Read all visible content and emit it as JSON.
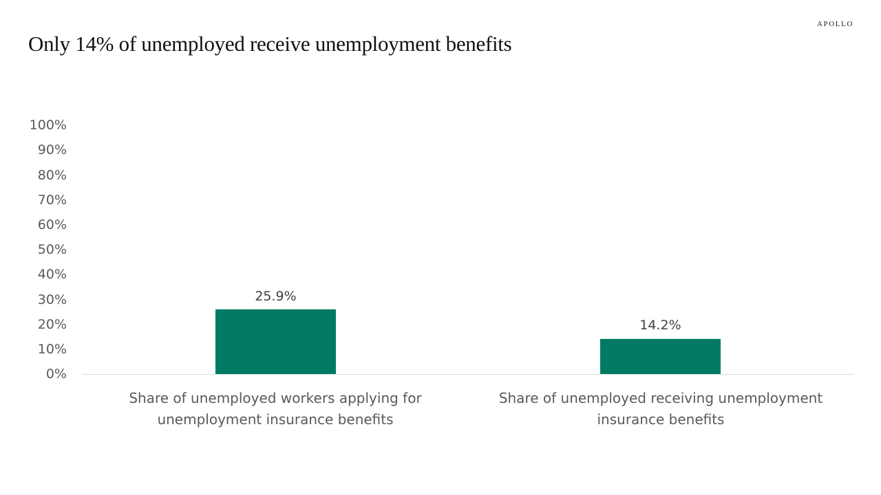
{
  "header": {
    "title": "Only 14% of  unemployed receive unemployment benefits",
    "logo": "APOLLO"
  },
  "chart_data": {
    "type": "bar",
    "title": "Only 14% of unemployed receive unemployment benefits",
    "categories": [
      "Share of unemployed workers applying for unemployment insurance benefits",
      "Share of unemployed receiving unemployment insurance benefits"
    ],
    "category_lines": [
      [
        "Share of unemployed workers applying for",
        "unemployment insurance benefits"
      ],
      [
        "Share of unemployed receiving unemployment",
        "insurance benefits"
      ]
    ],
    "values": [
      25.9,
      14.2
    ],
    "data_labels": [
      "25.9%",
      "14.2%"
    ],
    "xlabel": "",
    "ylabel": "",
    "ylim": [
      0,
      100
    ],
    "yticks": [
      "0%",
      "10%",
      "20%",
      "30%",
      "40%",
      "50%",
      "60%",
      "70%",
      "80%",
      "90%",
      "100%"
    ],
    "grid": false,
    "legend": null,
    "bar_color": "#007a63"
  }
}
